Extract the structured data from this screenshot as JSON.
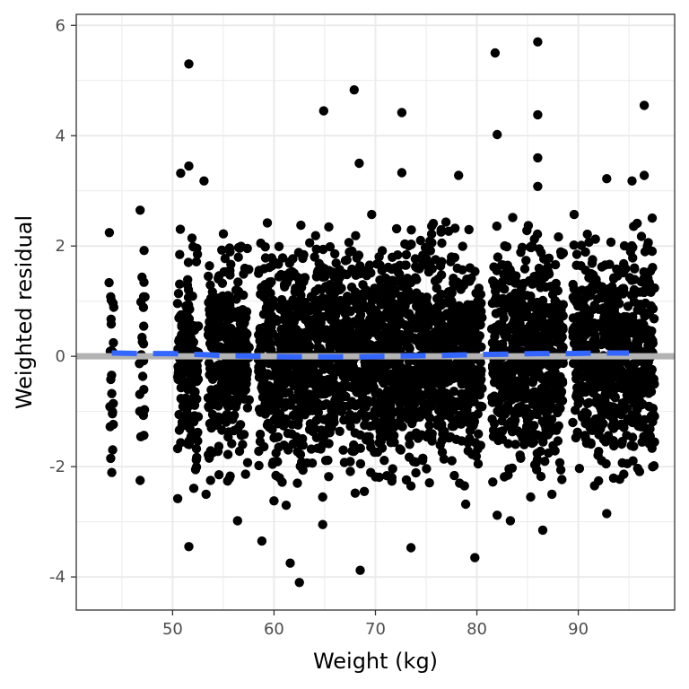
{
  "chart_data": {
    "type": "scatter",
    "title": "",
    "xlabel": "Weight (kg)",
    "ylabel": "Weighted residual",
    "xlim": [
      40.5,
      99.5
    ],
    "ylim": [
      -4.6,
      6.2
    ],
    "x_ticks": [
      50,
      60,
      70,
      80,
      90
    ],
    "y_ticks": [
      -4,
      -2,
      0,
      2,
      4,
      6
    ],
    "x_tick_labels": [
      "50",
      "60",
      "70",
      "80",
      "90"
    ],
    "y_tick_labels": [
      "-4",
      "-2",
      "0",
      "2",
      "4",
      "6"
    ],
    "grid": true,
    "legend": "none",
    "colors": {
      "points": "#000000",
      "reference_line": "#b3b3b3",
      "smooth_line": "#3366ff",
      "grid": "#ebebeb",
      "panel_border": "#333333"
    },
    "reference_line": {
      "y": 0
    },
    "smooth": {
      "x": [
        44,
        47,
        50,
        53,
        56,
        59,
        62,
        65,
        68,
        71,
        74,
        77,
        80,
        83,
        86,
        89,
        92,
        95
      ],
      "y": [
        0.06,
        0.05,
        0.05,
        0.03,
        0.01,
        0.0,
        -0.01,
        -0.01,
        -0.01,
        0.0,
        0.01,
        0.02,
        0.03,
        0.04,
        0.05,
        0.05,
        0.06,
        0.06
      ]
    },
    "weight_groups": [
      44,
      47,
      51,
      52,
      54,
      55,
      56,
      57,
      59,
      60,
      61,
      62,
      63,
      64,
      65,
      66,
      67,
      68,
      69,
      70,
      71,
      72,
      73,
      74,
      75,
      76,
      77,
      78,
      79,
      80,
      82,
      83,
      84,
      85,
      86,
      87,
      88,
      90,
      91,
      92,
      93,
      94,
      95,
      96,
      97
    ],
    "points": [
      {
        "x": 51.6,
        "y": 5.3
      },
      {
        "x": 64.9,
        "y": 4.45
      },
      {
        "x": 67.9,
        "y": 4.83
      },
      {
        "x": 72.6,
        "y": 4.42
      },
      {
        "x": 81.8,
        "y": 5.5
      },
      {
        "x": 82.0,
        "y": 4.02
      },
      {
        "x": 86.0,
        "y": 5.7
      },
      {
        "x": 86.0,
        "y": 4.38
      },
      {
        "x": 96.5,
        "y": 4.55
      },
      {
        "x": 50.8,
        "y": 3.32
      },
      {
        "x": 51.6,
        "y": 3.45
      },
      {
        "x": 53.1,
        "y": 3.18
      },
      {
        "x": 68.4,
        "y": 3.5
      },
      {
        "x": 72.6,
        "y": 3.33
      },
      {
        "x": 78.2,
        "y": 3.28
      },
      {
        "x": 86.0,
        "y": 3.6
      },
      {
        "x": 86.0,
        "y": 3.08
      },
      {
        "x": 92.8,
        "y": 3.22
      },
      {
        "x": 96.5,
        "y": 3.28
      },
      {
        "x": 95.3,
        "y": 3.18
      },
      {
        "x": 50.5,
        "y": -2.58
      },
      {
        "x": 51.6,
        "y": -3.45
      },
      {
        "x": 53.3,
        "y": -2.5
      },
      {
        "x": 56.4,
        "y": -2.98
      },
      {
        "x": 58.8,
        "y": -3.35
      },
      {
        "x": 60.0,
        "y": -2.62
      },
      {
        "x": 61.2,
        "y": -2.7
      },
      {
        "x": 61.6,
        "y": -3.75
      },
      {
        "x": 62.5,
        "y": -4.1
      },
      {
        "x": 62.3,
        "y": -2.3
      },
      {
        "x": 64.8,
        "y": -2.55
      },
      {
        "x": 64.8,
        "y": -3.05
      },
      {
        "x": 68.0,
        "y": -2.48
      },
      {
        "x": 68.5,
        "y": -3.88
      },
      {
        "x": 68.9,
        "y": -2.45
      },
      {
        "x": 73.5,
        "y": -3.47
      },
      {
        "x": 73.5,
        "y": -2.35
      },
      {
        "x": 78.3,
        "y": -2.3
      },
      {
        "x": 78.9,
        "y": -2.68
      },
      {
        "x": 79.8,
        "y": -3.65
      },
      {
        "x": 82.0,
        "y": -2.88
      },
      {
        "x": 83.3,
        "y": -2.98
      },
      {
        "x": 85.3,
        "y": -2.55
      },
      {
        "x": 86.5,
        "y": -3.15
      },
      {
        "x": 87.4,
        "y": -2.5
      },
      {
        "x": 92.8,
        "y": -2.85
      },
      {
        "x": 46.8,
        "y": -2.25
      },
      {
        "x": 43.9,
        "y": -1.85
      },
      {
        "x": 43.9,
        "y": 1.08
      },
      {
        "x": 46.8,
        "y": 2.65
      }
    ]
  }
}
